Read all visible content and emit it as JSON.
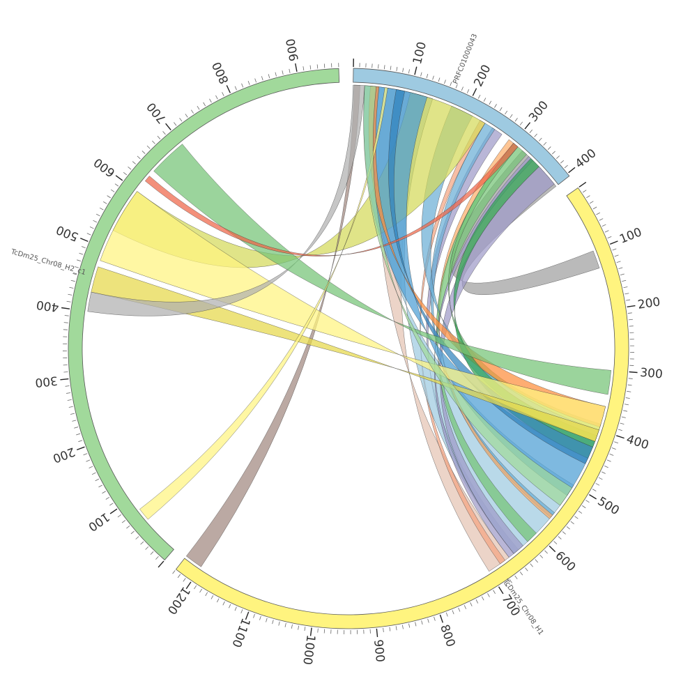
{
  "diagram_type": "circos synteny plot",
  "segments": [
    {
      "id": "prfc",
      "label": "PRFC01000043",
      "color": "#9ecae1",
      "length": 405,
      "ticks": [
        "100",
        "200",
        "300",
        "400"
      ]
    },
    {
      "id": "h1",
      "label": "TcDm25_Chr08_H1",
      "color": "#fff47f",
      "length": 1230,
      "ticks": [
        "100",
        "200",
        "300",
        "400",
        "500",
        "600",
        "700",
        "800",
        "900",
        "1000",
        "1100",
        "1200"
      ]
    },
    {
      "id": "h2",
      "label": "TcDm25_Chr08_H2_c1",
      "color": "#a1d99b",
      "length": 960,
      "ticks": [
        "100",
        "200",
        "300",
        "400",
        "500",
        "600",
        "700",
        "800",
        "900"
      ]
    }
  ],
  "links": [
    {
      "from": [
        "prfc",
        55,
        140
      ],
      "to": [
        "h1",
        660,
        700
      ],
      "color": "#e5c3b3"
    },
    {
      "from": [
        "prfc",
        230,
        240
      ],
      "to": [
        "h1",
        668,
        678
      ],
      "color": "#f4a582"
    },
    {
      "from": [
        "prfc",
        255,
        275
      ],
      "to": [
        "h1",
        640,
        650
      ],
      "color": "#9e9ac8"
    },
    {
      "from": [
        "prfc",
        40,
        140
      ],
      "to": [
        "h1",
        500,
        650
      ],
      "color": "#9ecae1"
    },
    {
      "from": [
        "prfc",
        240,
        260
      ],
      "to": [
        "h1",
        555,
        565
      ],
      "color": "#6baed6"
    },
    {
      "from": [
        "prfc",
        290,
        300
      ],
      "to": [
        "h1",
        560,
        568
      ],
      "color": "#fdae6b"
    },
    {
      "from": [
        "prfc",
        320,
        405
      ],
      "to": [
        "h1",
        100,
        130
      ],
      "color": "#a0a0a0"
    },
    {
      "from": [
        "prfc",
        360,
        400
      ],
      "to": [
        "h1",
        630,
        650
      ],
      "color": "#9e9ac8"
    },
    {
      "from": [
        "prfc",
        300,
        330
      ],
      "to": [
        "h1",
        600,
        620
      ],
      "color": "#74c476"
    },
    {
      "from": [
        "prfc",
        335,
        345
      ],
      "to": [
        "h1",
        650,
        660
      ],
      "color": "#9e9ac8"
    },
    {
      "from": [
        "prfc",
        300,
        310
      ],
      "to": [
        "h1",
        390,
        410
      ],
      "color": "#74c476"
    },
    {
      "from": [
        "prfc",
        175,
        215
      ],
      "to": [
        "h1",
        400,
        430
      ],
      "color": "#6baed6"
    },
    {
      "from": [
        "prfc",
        100,
        240
      ],
      "to": [
        "h2",
        530,
        600
      ],
      "color": "#d4d95a"
    },
    {
      "from": [
        "prfc",
        20,
        130
      ],
      "to": [
        "h1",
        450,
        520
      ],
      "color": "#4c9ed4"
    },
    {
      "from": [
        "prfc",
        2,
        12
      ],
      "to": [
        "h1",
        1200,
        1230
      ],
      "color": "#a1887f"
    },
    {
      "from": [
        "prfc",
        30,
        45
      ],
      "to": [
        "h1",
        360,
        395
      ],
      "color": "#fd8d3c"
    },
    {
      "from": [
        "prfc",
        340,
        360
      ],
      "to": [
        "h1",
        410,
        450
      ],
      "color": "#31a354"
    },
    {
      "from": [
        "prfc",
        75,
        90
      ],
      "to": [
        "h1",
        430,
        460
      ],
      "color": "#3182bd"
    },
    {
      "from": [
        "h2",
        480,
        600
      ],
      "to": [
        "h1",
        360,
        420
      ],
      "color": "#fff47f"
    },
    {
      "from": [
        "h2",
        430,
        470
      ],
      "to": [
        "h1",
        400,
        420
      ],
      "color": "#e6d84a"
    },
    {
      "from": [
        "h2",
        400,
        430
      ],
      "to": [
        "prfc",
        0,
        20
      ],
      "color": "#b0b0b0"
    },
    {
      "from": [
        "h2",
        640,
        700
      ],
      "to": [
        "h1",
        300,
        340
      ],
      "color": "#74c476"
    },
    {
      "from": [
        "h2",
        620,
        630
      ],
      "to": [
        "prfc",
        300,
        310
      ],
      "color": "#ef6548"
    },
    {
      "from": [
        "h2",
        60,
        80
      ],
      "to": [
        "prfc",
        55,
        60
      ],
      "color": "#fff47f"
    },
    {
      "from": [
        "prfc",
        20,
        40
      ],
      "to": [
        "h1",
        505,
        540
      ],
      "color": "#a1d99b"
    }
  ]
}
